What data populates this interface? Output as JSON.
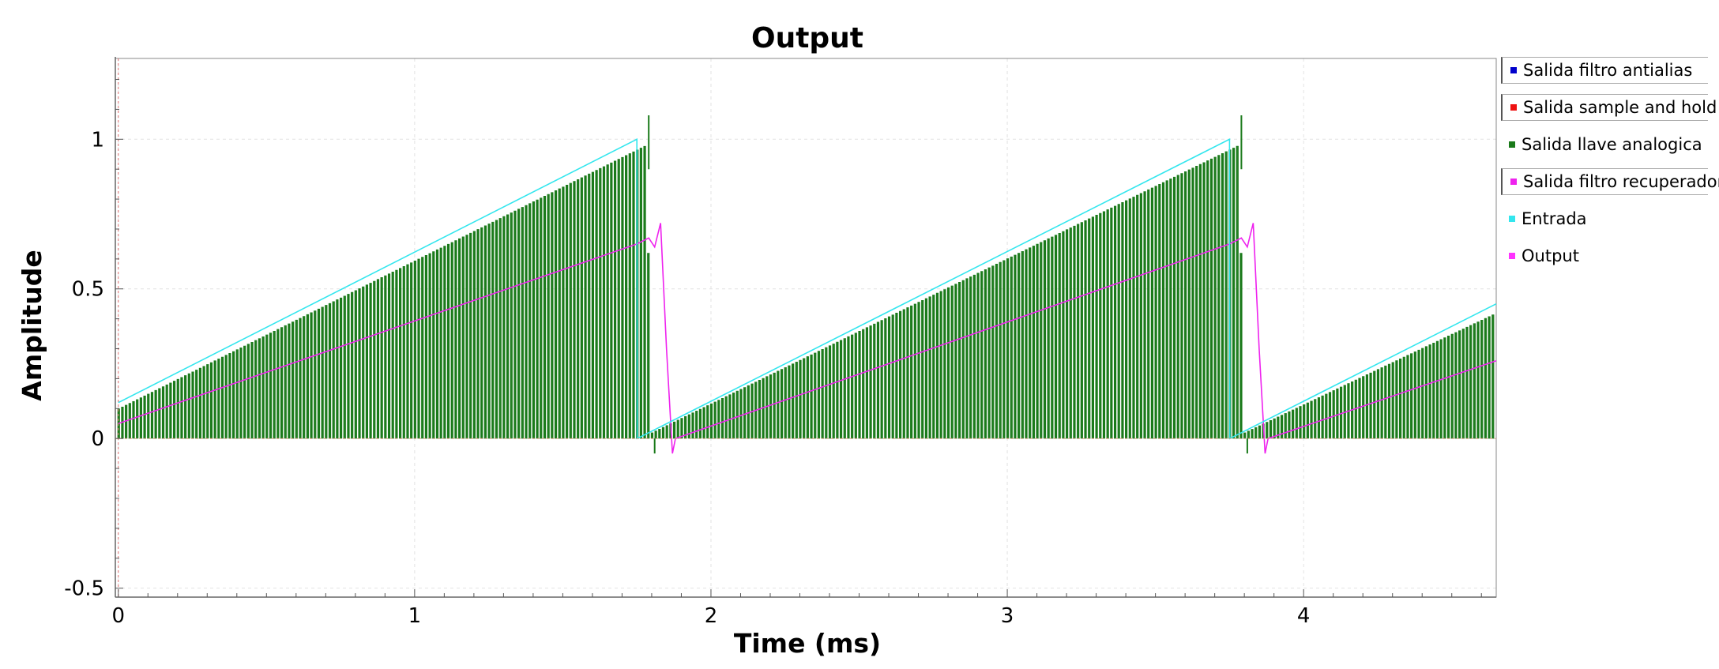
{
  "chart_data": {
    "type": "line",
    "title": "Output",
    "xlabel": "Time (ms)",
    "ylabel": "Amplitude",
    "xlim": [
      -0.01,
      4.65
    ],
    "ylim": [
      -0.53,
      1.27
    ],
    "x_ticks": [
      0,
      1,
      2,
      3,
      4
    ],
    "x_tick_labels": [
      "0",
      "1",
      "2",
      "3",
      "4"
    ],
    "y_ticks": [
      -0.5,
      0,
      0.5,
      1
    ],
    "y_tick_labels": [
      "-0.5",
      "0",
      "0.5",
      "1"
    ],
    "grid": true,
    "legend_position": "right",
    "series": [
      {
        "name": "Salida filtro antialias",
        "color": "#0000cc",
        "visible": false,
        "points": []
      },
      {
        "name": "Salida sample and hold",
        "color": "#ee1111",
        "visible": false,
        "points": []
      },
      {
        "name": "Salida llave analogica",
        "color": "#1a7a1a",
        "style": "sampled-pulses",
        "sample_period_ms": 0.0125,
        "envelope": [
          [
            0.0,
            0.1
          ],
          [
            1.78,
            0.98
          ],
          [
            1.8,
            0.02
          ],
          [
            3.78,
            0.98
          ],
          [
            3.8,
            0.02
          ],
          [
            4.65,
            0.42
          ]
        ],
        "spikes": [
          [
            1.79,
            1.08
          ],
          [
            3.79,
            1.08
          ]
        ],
        "undershoots": [
          [
            1.81,
            -0.05
          ],
          [
            3.81,
            -0.05
          ]
        ]
      },
      {
        "name": "Salida filtro recuperador",
        "color": "#ee22ee",
        "visible": true,
        "points": [
          [
            0.0,
            0.05
          ],
          [
            1.75,
            0.65
          ],
          [
            1.79,
            0.67
          ],
          [
            1.81,
            0.64
          ],
          [
            1.83,
            0.72
          ],
          [
            1.85,
            0.3
          ],
          [
            1.87,
            -0.05
          ],
          [
            1.88,
            0.0
          ],
          [
            3.75,
            0.65
          ],
          [
            3.79,
            0.67
          ],
          [
            3.81,
            0.64
          ],
          [
            3.83,
            0.72
          ],
          [
            3.85,
            0.3
          ],
          [
            3.87,
            -0.05
          ],
          [
            3.88,
            0.0
          ],
          [
            4.65,
            0.26
          ]
        ]
      },
      {
        "name": "Entrada",
        "color": "#33e6ee",
        "points": [
          [
            0.0,
            0.12
          ],
          [
            1.75,
            1.0
          ],
          [
            1.751,
            0.0
          ],
          [
            3.75,
            1.0
          ],
          [
            3.751,
            0.0
          ],
          [
            4.65,
            0.45
          ]
        ]
      },
      {
        "name": "Output",
        "color": "#ff33ff",
        "points": []
      }
    ],
    "legend": [
      {
        "label": "Salida filtro antialias",
        "color": "#0000cc",
        "framed": true
      },
      {
        "label": "Salida sample and hold",
        "color": "#ee1111",
        "framed": true
      },
      {
        "label": "Salida llave analogica",
        "color": "#1a7a1a",
        "framed": false
      },
      {
        "label": "Salida filtro recuperador",
        "color": "#ee22ee",
        "framed": true
      },
      {
        "label": "Entrada",
        "color": "#33e6ee",
        "framed": false
      },
      {
        "label": "Output",
        "color": "#ff33ff",
        "framed": false
      }
    ]
  }
}
